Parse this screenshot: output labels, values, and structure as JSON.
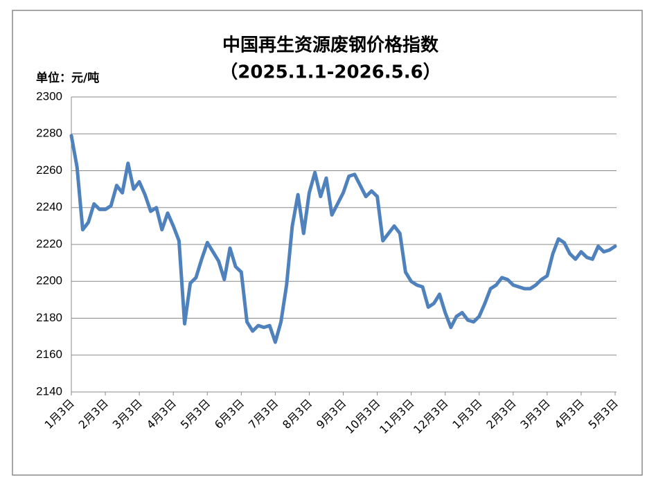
{
  "chart_data": {
    "type": "line",
    "title": "中国再生资源废钢价格指数",
    "subtitle": "（2025.1.1-2026.5.6）",
    "unit": "单位：元/吨",
    "categories": [
      "1月3日",
      null,
      null,
      null,
      null,
      null,
      "2月3日",
      null,
      null,
      null,
      null,
      null,
      "3月3日",
      null,
      null,
      null,
      null,
      null,
      "4月3日",
      null,
      null,
      null,
      null,
      null,
      "5月3日",
      null,
      null,
      null,
      null,
      null,
      "6月3日",
      null,
      null,
      null,
      null,
      null,
      "7月3日",
      null,
      null,
      null,
      null,
      null,
      "8月3日",
      null,
      null,
      null,
      null,
      null,
      "9月3日",
      null,
      null,
      null,
      null,
      null,
      "10月3日",
      null,
      null,
      null,
      null,
      null,
      "11月3日",
      null,
      null,
      null,
      null,
      null,
      "12月3日",
      null,
      null,
      null,
      null,
      null,
      "1月3日",
      null,
      null,
      null,
      null,
      null,
      "2月3日",
      null,
      null,
      null,
      null,
      null,
      "3月3日",
      null,
      null,
      null,
      null,
      null,
      "4月3日",
      null,
      null,
      null,
      null,
      null,
      "5月3日"
    ],
    "series": [
      {
        "color": "#4f81bd",
        "values": [
          2279,
          2262,
          2228,
          2232,
          2242,
          2239,
          2239,
          2241,
          2252,
          2248,
          2264,
          2250,
          2254,
          2247,
          2238,
          2240,
          2228,
          2237,
          2230,
          2222,
          2177,
          2199,
          2202,
          2212,
          2221,
          2216,
          2211,
          2201,
          2218,
          2208,
          2205,
          2178,
          2173,
          2176,
          2175,
          2176,
          2167,
          2178,
          2198,
          2230,
          2247,
          2226,
          2248,
          2259,
          2246,
          2256,
          2236,
          2242,
          2248,
          2257,
          2258,
          2252,
          2246,
          2249,
          2246,
          2222,
          2226,
          2230,
          2226,
          2205,
          2200,
          2198,
          2197,
          2186,
          2188,
          2193,
          2183,
          2175,
          2181,
          2183,
          2179,
          2178,
          2181,
          2188,
          2196,
          2198,
          2202,
          2201,
          2198,
          2197,
          2196,
          2196,
          2198,
          2201,
          2203,
          2215,
          2223,
          2221,
          2215,
          2212,
          2216,
          2213,
          2212,
          2219,
          2216,
          2217,
          2219
        ]
      }
    ],
    "ylim": [
      2140,
      2300
    ],
    "yticks": [
      2140,
      2160,
      2180,
      2200,
      2220,
      2240,
      2260,
      2280,
      2300
    ],
    "grid": true
  }
}
